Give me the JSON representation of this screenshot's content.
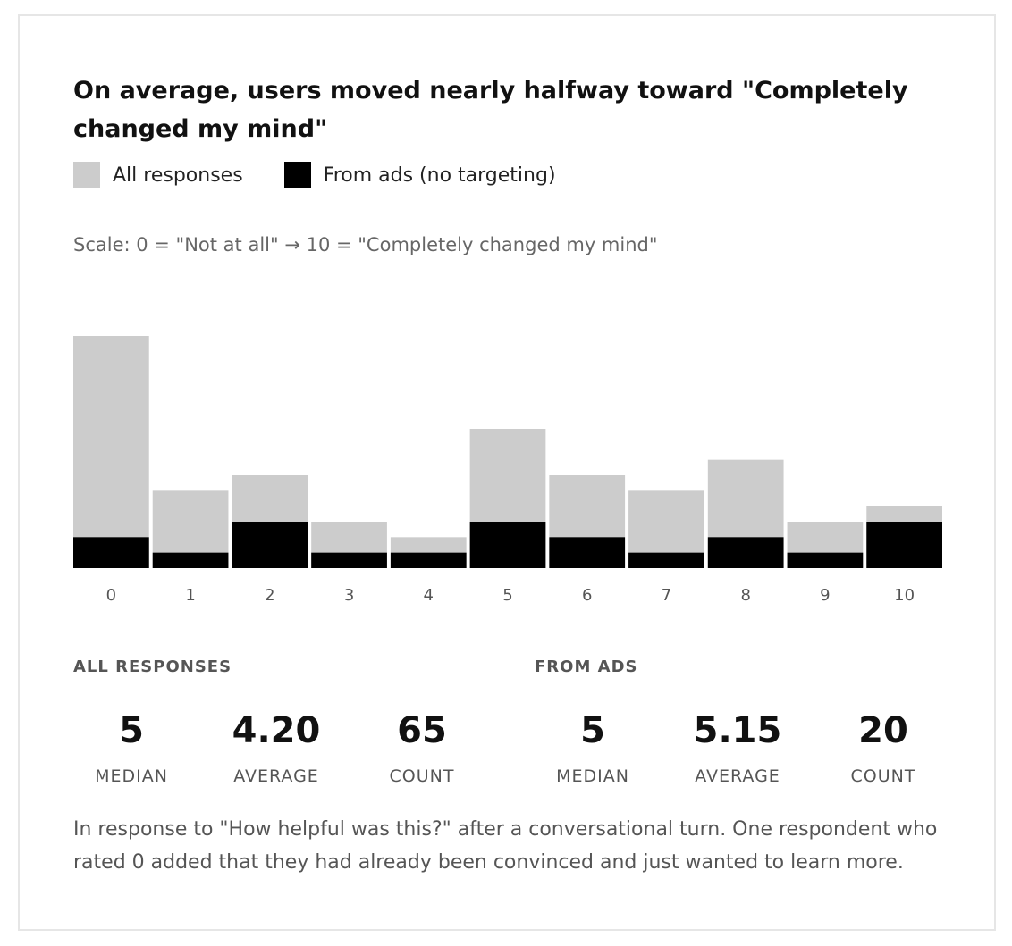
{
  "chart_data": {
    "type": "bar",
    "title": "On average, users moved nearly halfway toward \"Completely changed my mind\"",
    "subtitle": "Scale: 0 = \"Not at all\" → 10 = \"Completely changed my mind\"",
    "categories": [
      "0",
      "1",
      "2",
      "3",
      "4",
      "5",
      "6",
      "7",
      "8",
      "9",
      "10"
    ],
    "series": [
      {
        "name": "All responses",
        "color": "#cccccc",
        "values": [
          15,
          5,
          6,
          3,
          2,
          9,
          6,
          5,
          7,
          3,
          4
        ]
      },
      {
        "name": "From ads (no targeting)",
        "color": "#000000",
        "values": [
          2,
          1,
          3,
          1,
          1,
          3,
          2,
          1,
          2,
          1,
          3
        ]
      }
    ],
    "overlay": true,
    "ylim": [
      0,
      15
    ],
    "xlabel": "",
    "ylabel": ""
  },
  "stats": {
    "all": {
      "heading": "ALL RESPONSES",
      "median": "5",
      "median_label": "MEDIAN",
      "average": "4.20",
      "average_label": "AVERAGE",
      "count": "65",
      "count_label": "COUNT"
    },
    "ads": {
      "heading": "FROM ADS",
      "median": "5",
      "median_label": "MEDIAN",
      "average": "5.15",
      "average_label": "AVERAGE",
      "count": "20",
      "count_label": "COUNT"
    }
  },
  "footnote": "In response to \"How helpful was this?\" after a conversational turn. One respondent who rated 0 added that they had already been convinced and just wanted to learn more."
}
